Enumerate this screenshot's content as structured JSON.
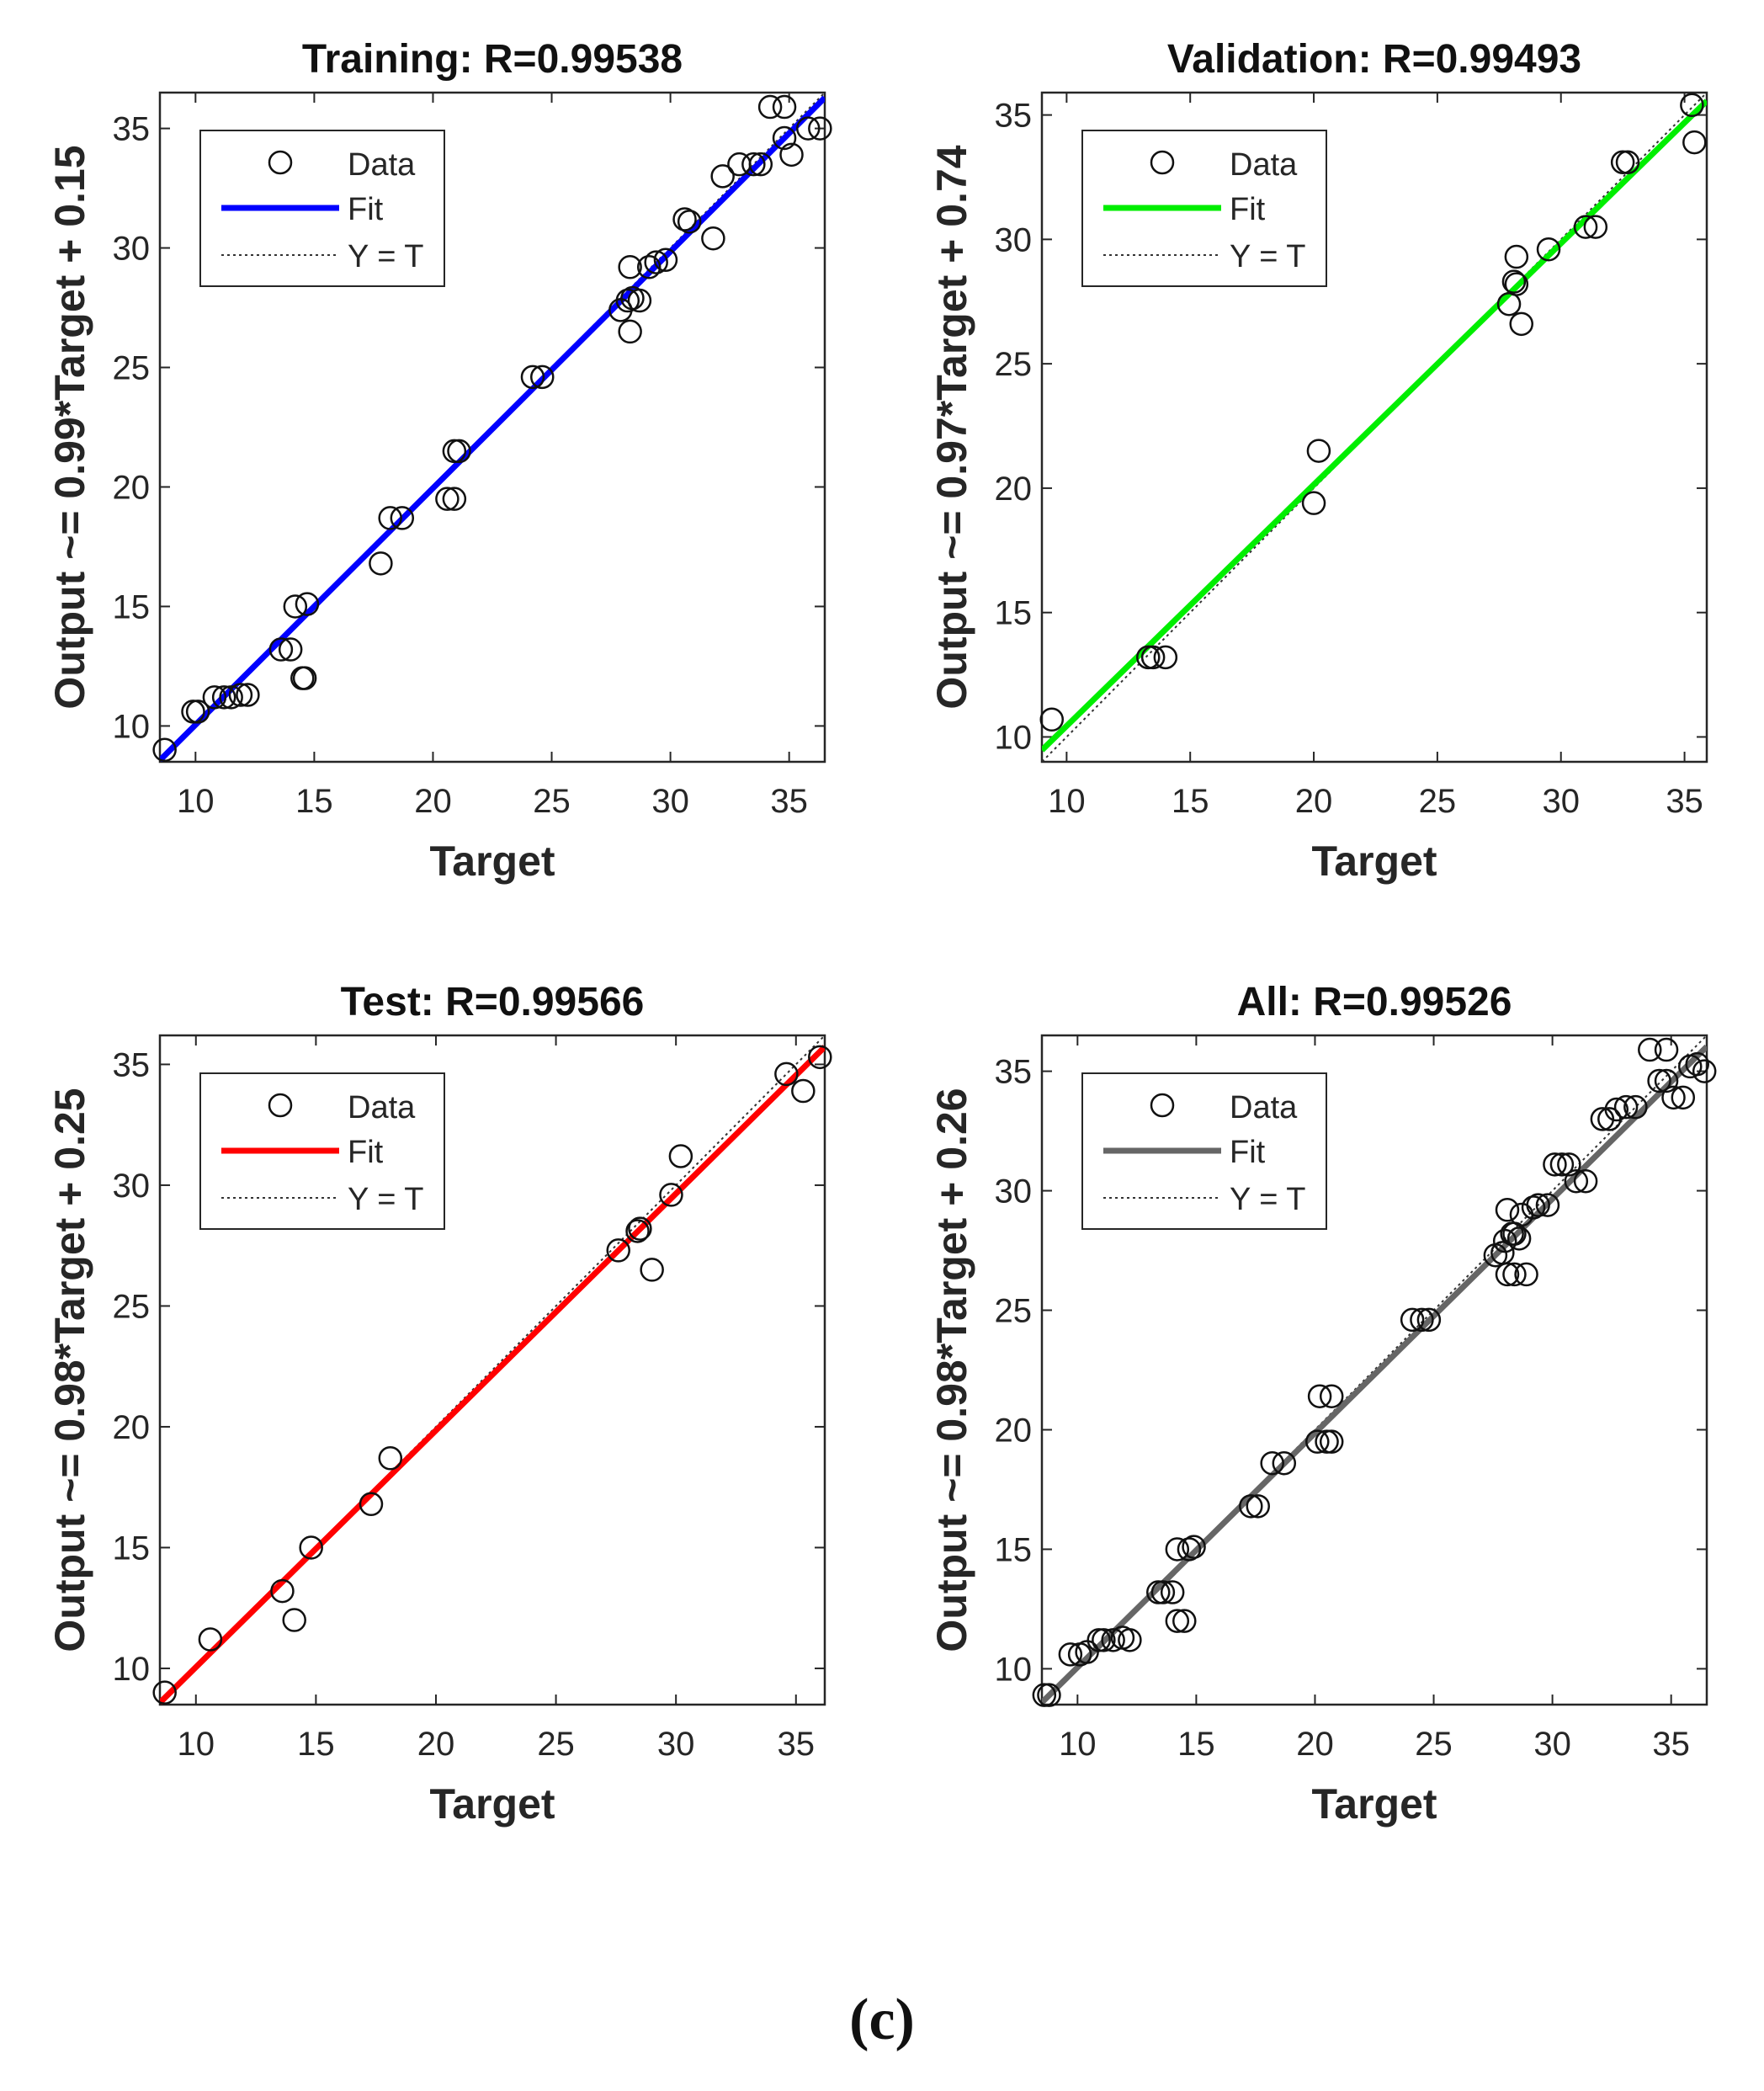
{
  "caption": "(c)",
  "legend_labels": {
    "data": "Data",
    "fit": "Fit",
    "identity": "Y = T"
  },
  "chart_data": [
    {
      "type": "scatter",
      "title": "Training: R=0.99538",
      "xlabel": "Target",
      "ylabel": "Output ~= 0.99*Target + 0.15",
      "xlim": [
        8.5,
        36.5
      ],
      "ylim": [
        8.5,
        36.5
      ],
      "xticks": [
        10,
        15,
        20,
        25,
        30,
        35
      ],
      "yticks": [
        10,
        15,
        20,
        25,
        30,
        35
      ],
      "fit": {
        "slope": 0.99,
        "intercept": 0.15
      },
      "fit_color": "#0000ff",
      "legend_position": "top-left",
      "grid": false,
      "points": [
        [
          8.7,
          9.0
        ],
        [
          9.9,
          10.6
        ],
        [
          10.1,
          10.6
        ],
        [
          10.8,
          11.2
        ],
        [
          11.2,
          11.2
        ],
        [
          11.5,
          11.2
        ],
        [
          11.9,
          11.3
        ],
        [
          12.2,
          11.3
        ],
        [
          13.6,
          13.2
        ],
        [
          14.0,
          13.2
        ],
        [
          14.2,
          15.0
        ],
        [
          14.5,
          12.0
        ],
        [
          14.6,
          12.0
        ],
        [
          14.7,
          15.1
        ],
        [
          17.8,
          16.8
        ],
        [
          18.2,
          18.7
        ],
        [
          18.7,
          18.7
        ],
        [
          20.6,
          19.5
        ],
        [
          20.9,
          19.5
        ],
        [
          20.9,
          21.5
        ],
        [
          21.1,
          21.5
        ],
        [
          24.2,
          24.6
        ],
        [
          24.6,
          24.6
        ],
        [
          27.9,
          27.4
        ],
        [
          28.2,
          27.8
        ],
        [
          28.3,
          29.2
        ],
        [
          28.3,
          26.5
        ],
        [
          28.4,
          27.9
        ],
        [
          28.7,
          27.8
        ],
        [
          29.1,
          29.2
        ],
        [
          29.4,
          29.4
        ],
        [
          29.8,
          29.5
        ],
        [
          30.6,
          31.2
        ],
        [
          30.8,
          31.1
        ],
        [
          31.8,
          30.4
        ],
        [
          32.2,
          33.0
        ],
        [
          32.9,
          33.5
        ],
        [
          33.5,
          33.5
        ],
        [
          33.8,
          33.5
        ],
        [
          34.2,
          35.9
        ],
        [
          34.8,
          35.9
        ],
        [
          34.8,
          34.6
        ],
        [
          35.1,
          33.9
        ],
        [
          35.8,
          35.0
        ],
        [
          36.3,
          35.0
        ]
      ]
    },
    {
      "type": "scatter",
      "title": "Validation: R=0.99493",
      "xlabel": "Target",
      "ylabel": "Output ~= 0.97*Target + 0.74",
      "xlim": [
        9.0,
        35.9
      ],
      "ylim": [
        9.0,
        35.9
      ],
      "xticks": [
        10,
        15,
        20,
        25,
        30,
        35
      ],
      "yticks": [
        10,
        15,
        20,
        25,
        30,
        35
      ],
      "fit": {
        "slope": 0.97,
        "intercept": 0.74
      },
      "fit_color": "#00ee00",
      "legend_position": "top-left",
      "grid": false,
      "points": [
        [
          9.4,
          10.7
        ],
        [
          13.3,
          13.2
        ],
        [
          13.5,
          13.2
        ],
        [
          14.0,
          13.2
        ],
        [
          20.0,
          19.4
        ],
        [
          20.2,
          21.5
        ],
        [
          27.9,
          27.4
        ],
        [
          28.1,
          28.3
        ],
        [
          28.2,
          28.2
        ],
        [
          28.2,
          29.3
        ],
        [
          28.4,
          26.6
        ],
        [
          29.5,
          29.6
        ],
        [
          31.0,
          30.5
        ],
        [
          31.4,
          30.5
        ],
        [
          32.5,
          33.1
        ],
        [
          32.7,
          33.1
        ],
        [
          35.3,
          35.4
        ],
        [
          35.4,
          33.9
        ]
      ]
    },
    {
      "type": "scatter",
      "title": "Test: R=0.99566",
      "xlabel": "Target",
      "ylabel": "Output ~= 0.98*Target + 0.25",
      "xlim": [
        8.5,
        36.2
      ],
      "ylim": [
        8.5,
        36.2
      ],
      "xticks": [
        10,
        15,
        20,
        25,
        30,
        35
      ],
      "yticks": [
        10,
        15,
        20,
        25,
        30,
        35
      ],
      "fit": {
        "slope": 0.98,
        "intercept": 0.25
      },
      "fit_color": "#ff0000",
      "legend_position": "top-left",
      "grid": false,
      "points": [
        [
          8.7,
          9.0
        ],
        [
          10.6,
          11.2
        ],
        [
          13.6,
          13.2
        ],
        [
          14.1,
          12.0
        ],
        [
          14.8,
          15.0
        ],
        [
          17.3,
          16.8
        ],
        [
          18.1,
          18.7
        ],
        [
          27.6,
          27.3
        ],
        [
          28.4,
          28.1
        ],
        [
          28.5,
          28.2
        ],
        [
          29.0,
          26.5
        ],
        [
          29.8,
          29.6
        ],
        [
          30.2,
          31.2
        ],
        [
          34.6,
          34.6
        ],
        [
          35.3,
          33.9
        ],
        [
          36.0,
          35.3
        ]
      ]
    },
    {
      "type": "scatter",
      "title": "All: R=0.99526",
      "xlabel": "Target",
      "ylabel": "Output ~= 0.98*Target + 0.26",
      "xlim": [
        8.5,
        36.5
      ],
      "ylim": [
        8.5,
        36.5
      ],
      "xticks": [
        10,
        15,
        20,
        25,
        30,
        35
      ],
      "yticks": [
        10,
        15,
        20,
        25,
        30,
        35
      ],
      "fit": {
        "slope": 0.98,
        "intercept": 0.26
      },
      "fit_color": "#666666",
      "legend_position": "top-left",
      "grid": false,
      "points": [
        [
          8.6,
          8.9
        ],
        [
          8.8,
          8.9
        ],
        [
          9.7,
          10.6
        ],
        [
          10.1,
          10.6
        ],
        [
          10.4,
          10.7
        ],
        [
          10.9,
          11.2
        ],
        [
          11.1,
          11.2
        ],
        [
          11.5,
          11.2
        ],
        [
          11.9,
          11.3
        ],
        [
          12.2,
          11.2
        ],
        [
          13.4,
          13.2
        ],
        [
          13.6,
          13.2
        ],
        [
          14.0,
          13.2
        ],
        [
          14.2,
          15.0
        ],
        [
          14.2,
          12.0
        ],
        [
          14.5,
          12.0
        ],
        [
          14.7,
          15.0
        ],
        [
          14.9,
          15.1
        ],
        [
          17.3,
          16.8
        ],
        [
          17.6,
          16.8
        ],
        [
          18.2,
          18.6
        ],
        [
          18.7,
          18.6
        ],
        [
          20.1,
          19.5
        ],
        [
          20.2,
          21.4
        ],
        [
          20.5,
          19.5
        ],
        [
          20.7,
          21.4
        ],
        [
          20.7,
          19.5
        ],
        [
          24.1,
          24.6
        ],
        [
          24.5,
          24.6
        ],
        [
          24.8,
          24.6
        ],
        [
          27.6,
          27.3
        ],
        [
          27.9,
          27.4
        ],
        [
          28.0,
          27.9
        ],
        [
          28.1,
          29.2
        ],
        [
          28.1,
          26.5
        ],
        [
          28.3,
          28.2
        ],
        [
          28.4,
          28.2
        ],
        [
          28.4,
          26.5
        ],
        [
          28.6,
          28.0
        ],
        [
          28.7,
          29.0
        ],
        [
          28.9,
          26.5
        ],
        [
          29.2,
          29.3
        ],
        [
          29.4,
          29.4
        ],
        [
          29.8,
          29.4
        ],
        [
          30.1,
          31.1
        ],
        [
          30.4,
          31.1
        ],
        [
          30.7,
          31.1
        ],
        [
          31.0,
          30.4
        ],
        [
          31.4,
          30.4
        ],
        [
          32.1,
          33.0
        ],
        [
          32.4,
          33.0
        ],
        [
          32.7,
          33.4
        ],
        [
          33.1,
          33.5
        ],
        [
          33.5,
          33.5
        ],
        [
          34.1,
          35.9
        ],
        [
          34.5,
          34.6
        ],
        [
          34.8,
          34.6
        ],
        [
          34.8,
          35.9
        ],
        [
          35.1,
          33.9
        ],
        [
          35.5,
          33.9
        ],
        [
          35.8,
          35.2
        ],
        [
          36.1,
          35.3
        ],
        [
          36.4,
          35.0
        ]
      ]
    }
  ]
}
